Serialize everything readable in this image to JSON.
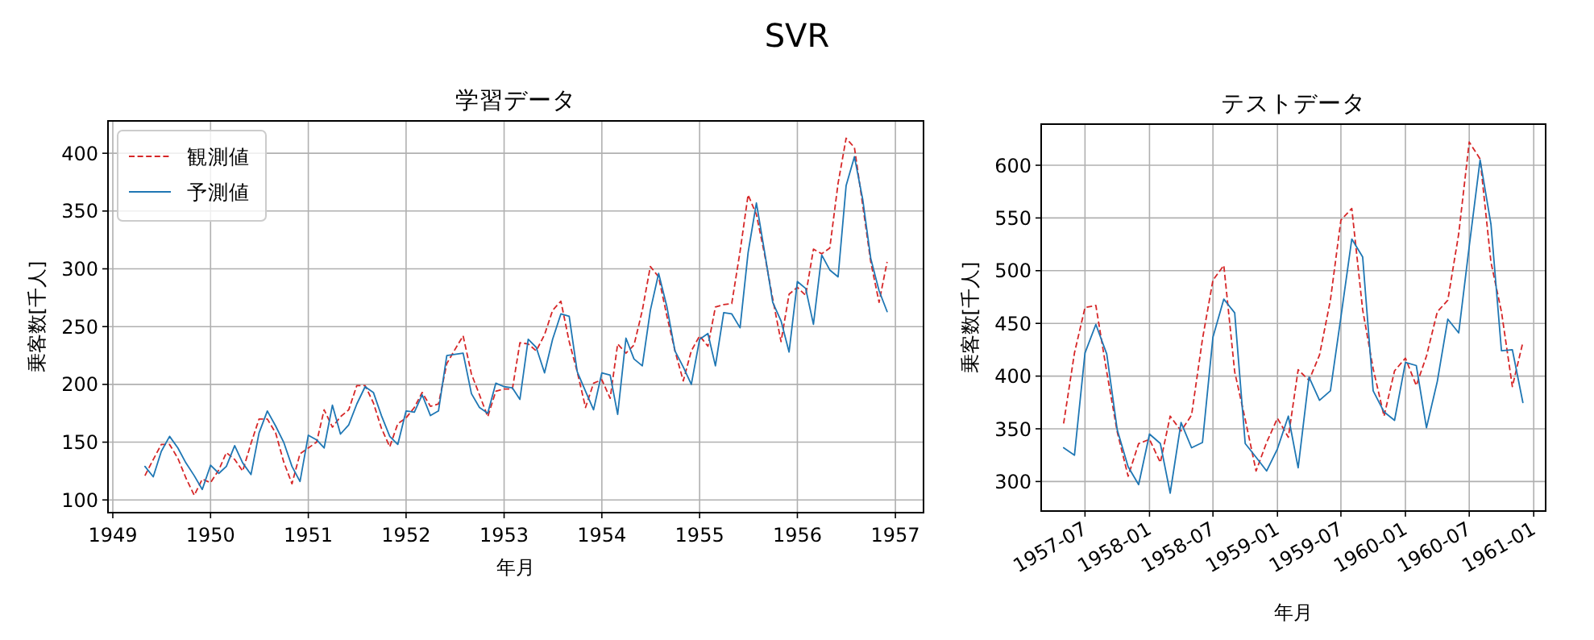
{
  "chart_data": [
    {
      "type": "line",
      "title": "学習データ",
      "xlabel": "年月",
      "ylabel": "乗客数[千人]",
      "annotations": [
        "SVR"
      ],
      "grid": true,
      "legend": "top left",
      "x": [
        "1949-05",
        "1949-06",
        "1949-07",
        "1949-08",
        "1949-09",
        "1949-10",
        "1949-11",
        "1949-12",
        "1950-01",
        "1950-02",
        "1950-03",
        "1950-04",
        "1950-05",
        "1950-06",
        "1950-07",
        "1950-08",
        "1950-09",
        "1950-10",
        "1950-11",
        "1950-12",
        "1951-01",
        "1951-02",
        "1951-03",
        "1951-04",
        "1951-05",
        "1951-06",
        "1951-07",
        "1951-08",
        "1951-09",
        "1951-10",
        "1951-11",
        "1951-12",
        "1952-01",
        "1952-02",
        "1952-03",
        "1952-04",
        "1952-05",
        "1952-06",
        "1952-07",
        "1952-08",
        "1952-09",
        "1952-10",
        "1952-11",
        "1952-12",
        "1953-01",
        "1953-02",
        "1953-03",
        "1953-04",
        "1953-05",
        "1953-06",
        "1953-07",
        "1953-08",
        "1953-09",
        "1953-10",
        "1953-11",
        "1953-12",
        "1954-01",
        "1954-02",
        "1954-03",
        "1954-04",
        "1954-05",
        "1954-06",
        "1954-07",
        "1954-08",
        "1954-09",
        "1954-10",
        "1954-11",
        "1954-12",
        "1955-01",
        "1955-02",
        "1955-03",
        "1955-04",
        "1955-05",
        "1955-06",
        "1955-07",
        "1955-08",
        "1955-09",
        "1955-10",
        "1955-11",
        "1955-12",
        "1956-01",
        "1956-02",
        "1956-03",
        "1956-04",
        "1956-05",
        "1956-06",
        "1956-07",
        "1956-08",
        "1956-09",
        "1956-10",
        "1956-11",
        "1956-12"
      ],
      "xlim": [
        "1948-12-14",
        "1957-04-16"
      ],
      "xticks": [
        {
          "value": "1949",
          "label": "1949"
        },
        {
          "value": "1950",
          "label": "1950"
        },
        {
          "value": "1951",
          "label": "1951"
        },
        {
          "value": "1952",
          "label": "1952"
        },
        {
          "value": "1953",
          "label": "1953"
        },
        {
          "value": "1954",
          "label": "1954"
        },
        {
          "value": "1955",
          "label": "1955"
        },
        {
          "value": "1956",
          "label": "1956"
        },
        {
          "value": "1957",
          "label": "1957"
        }
      ],
      "ylim": [
        89,
        428
      ],
      "yticks": [
        100,
        150,
        200,
        250,
        300,
        350,
        400
      ],
      "series": [
        {
          "name": "観測値",
          "color": "#d62728",
          "line_style": "dashed",
          "values": [
            121,
            135,
            148,
            148,
            136,
            119,
            104,
            118,
            115,
            126,
            141,
            135,
            125,
            149,
            170,
            170,
            158,
            133,
            114,
            140,
            145,
            150,
            178,
            163,
            172,
            178,
            199,
            199,
            184,
            162,
            146,
            166,
            171,
            180,
            193,
            181,
            183,
            218,
            230,
            242,
            209,
            191,
            172,
            194,
            196,
            196,
            236,
            235,
            229,
            243,
            264,
            272,
            237,
            211,
            180,
            201,
            204,
            188,
            235,
            227,
            234,
            264,
            302,
            293,
            259,
            229,
            203,
            229,
            242,
            233,
            267,
            269,
            270,
            315,
            364,
            347,
            312,
            274,
            237,
            278,
            284,
            277,
            317,
            313,
            318,
            374,
            413,
            405,
            355,
            306,
            271,
            306
          ]
        },
        {
          "name": "予測値",
          "color": "#1f77b4",
          "line_style": "solid",
          "values": [
            129,
            120,
            142,
            155,
            145,
            132,
            121,
            109,
            130,
            123,
            129,
            147,
            132,
            122,
            158,
            177,
            164,
            150,
            129,
            116,
            156,
            152,
            145,
            182,
            157,
            165,
            183,
            198,
            193,
            173,
            155,
            148,
            177,
            176,
            191,
            173,
            177,
            225,
            226,
            227,
            192,
            180,
            175,
            201,
            198,
            197,
            187,
            239,
            232,
            210,
            239,
            261,
            259,
            211,
            194,
            178,
            210,
            208,
            174,
            240,
            222,
            216,
            264,
            296,
            267,
            229,
            215,
            200,
            239,
            244,
            216,
            262,
            261,
            249,
            314,
            357,
            314,
            271,
            255,
            228,
            289,
            283,
            252,
            312,
            299,
            293,
            372,
            397,
            360,
            309,
            281,
            263
          ]
        }
      ]
    },
    {
      "type": "line",
      "title": "テストデータ",
      "xlabel": "年月",
      "ylabel": "乗客数[千人]",
      "grid": true,
      "x": [
        "1957-05",
        "1957-06",
        "1957-07",
        "1957-08",
        "1957-09",
        "1957-10",
        "1957-11",
        "1957-12",
        "1958-01",
        "1958-02",
        "1958-03",
        "1958-04",
        "1958-05",
        "1958-06",
        "1958-07",
        "1958-08",
        "1958-09",
        "1958-10",
        "1958-11",
        "1958-12",
        "1959-01",
        "1959-02",
        "1959-03",
        "1959-04",
        "1959-05",
        "1959-06",
        "1959-07",
        "1959-08",
        "1959-09",
        "1959-10",
        "1959-11",
        "1959-12",
        "1960-01",
        "1960-02",
        "1960-03",
        "1960-04",
        "1960-05",
        "1960-06",
        "1960-07",
        "1960-08",
        "1960-09",
        "1960-10",
        "1960-11",
        "1960-12"
      ],
      "xlim": [
        "1957-02-26",
        "1961-02-04"
      ],
      "xticks": [
        {
          "value": "1957-07",
          "label": "1957-07"
        },
        {
          "value": "1958-01",
          "label": "1958-01"
        },
        {
          "value": "1958-07",
          "label": "1958-07"
        },
        {
          "value": "1959-01",
          "label": "1959-01"
        },
        {
          "value": "1959-07",
          "label": "1959-07"
        },
        {
          "value": "1960-01",
          "label": "1960-01"
        },
        {
          "value": "1960-07",
          "label": "1960-07"
        },
        {
          "value": "1961-01",
          "label": "1961-01"
        }
      ],
      "ylim": [
        272,
        639
      ],
      "yticks": [
        300,
        350,
        400,
        450,
        500,
        550,
        600
      ],
      "series": [
        {
          "color": "#d62728",
          "line_style": "dashed",
          "values": [
            355,
            422,
            465,
            467,
            404,
            347,
            305,
            336,
            340,
            318,
            362,
            348,
            363,
            435,
            491,
            505,
            404,
            359,
            310,
            337,
            360,
            342,
            406,
            396,
            420,
            472,
            548,
            559,
            463,
            407,
            362,
            405,
            417,
            391,
            419,
            461,
            472,
            535,
            622,
            606,
            508,
            461,
            390,
            432
          ]
        },
        {
          "color": "#1f77b4",
          "line_style": "solid",
          "values": [
            332,
            325,
            422,
            449,
            421,
            349,
            314,
            297,
            345,
            336,
            289,
            356,
            332,
            337,
            437,
            473,
            460,
            336,
            323,
            310,
            331,
            362,
            313,
            399,
            377,
            386,
            456,
            530,
            513,
            386,
            366,
            358,
            413,
            410,
            351,
            395,
            454,
            441,
            523,
            605,
            544,
            424,
            425,
            375
          ]
        }
      ]
    }
  ]
}
